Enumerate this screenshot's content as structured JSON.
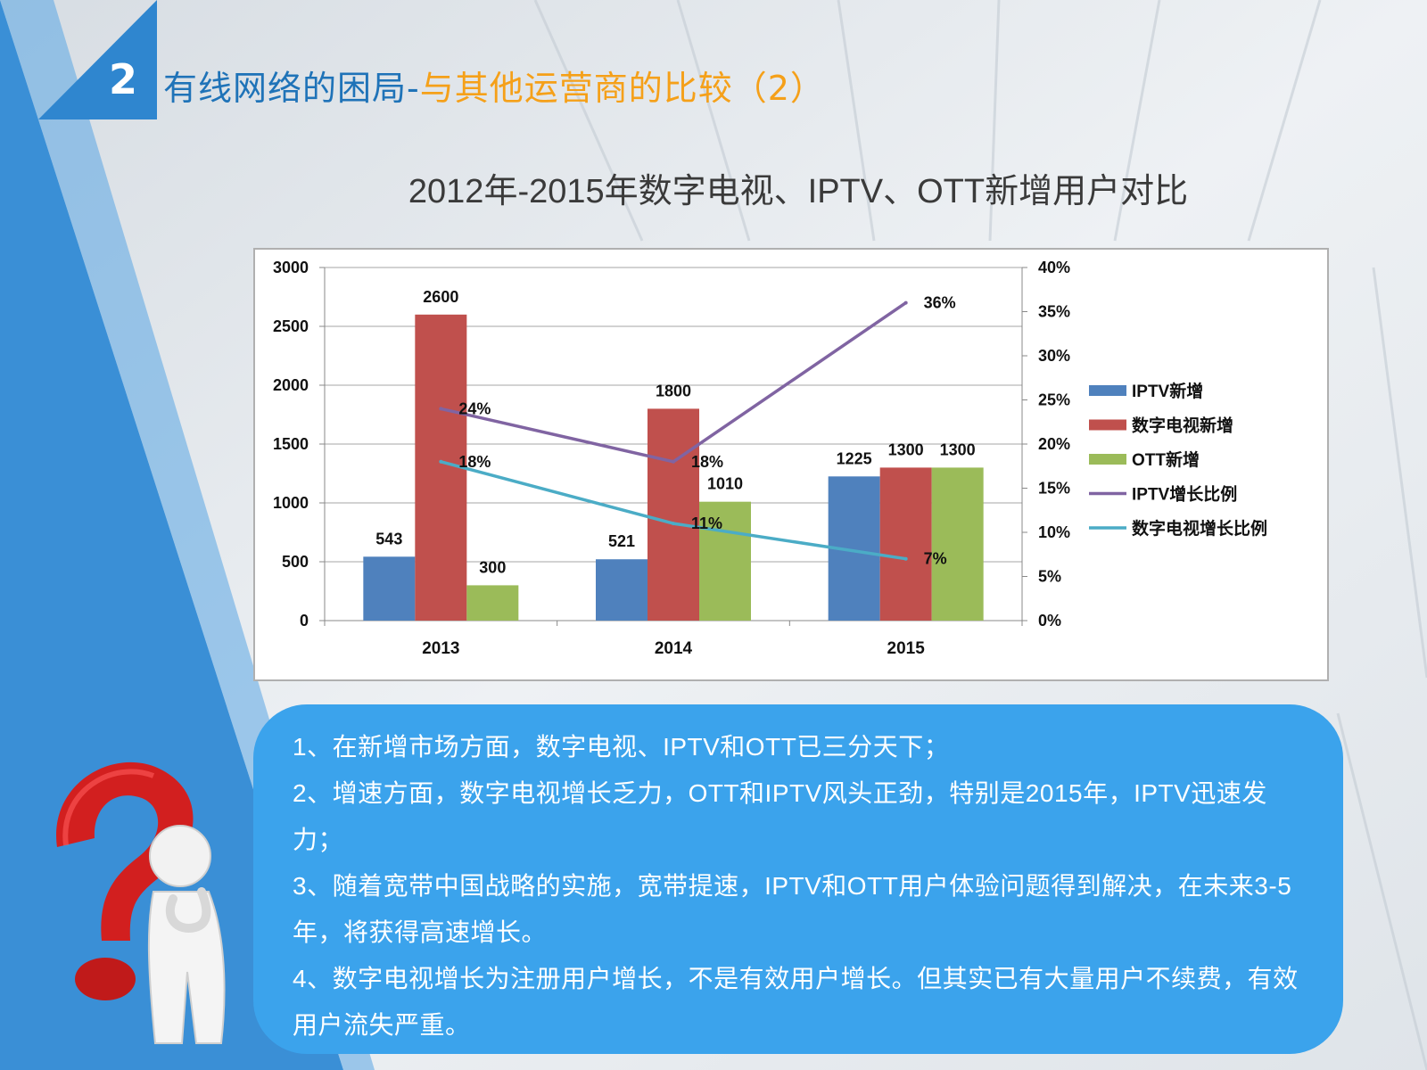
{
  "slide": {
    "number": "2",
    "title_part1": "有线网络的困局-",
    "title_part2": "与其他运营商的比较（2）",
    "chart_heading": "2012年-2015年数字电视、IPTV、OTT新增用户对比"
  },
  "colors": {
    "title_blue": "#1f73b8",
    "title_orange": "#f5a019",
    "iptv_bar": "#4f81bd",
    "dtv_bar": "#c0504d",
    "ott_bar": "#9bbb59",
    "iptv_growth_line": "#8064a2",
    "dtv_growth_line": "#4bacc6",
    "note_box": "#3ba3ec"
  },
  "chart_data": {
    "type": "bar",
    "title": "",
    "categories": [
      "2013",
      "2014",
      "2015"
    ],
    "series": [
      {
        "name": "IPTV新增",
        "kind": "bar",
        "values": [
          543,
          521,
          1225
        ],
        "labels": [
          "543",
          "521",
          "1225"
        ]
      },
      {
        "name": "数字电视新增",
        "kind": "bar",
        "values": [
          2600,
          1800,
          1300
        ],
        "labels": [
          "2600",
          "1800",
          "1300"
        ]
      },
      {
        "name": "OTT新增",
        "kind": "bar",
        "values": [
          300,
          1010,
          1300
        ],
        "labels": [
          "300",
          "1010",
          "1300"
        ]
      },
      {
        "name": "IPTV增长比例",
        "kind": "line",
        "axis": "right",
        "values": [
          0.24,
          0.18,
          0.36
        ],
        "labels": [
          "24%",
          "18%",
          "36%"
        ]
      },
      {
        "name": "数字电视增长比例",
        "kind": "line",
        "axis": "right",
        "values": [
          0.18,
          0.11,
          0.07
        ],
        "labels": [
          "18%",
          "11%",
          "7%"
        ]
      }
    ],
    "y_left": {
      "min": 0,
      "max": 3000,
      "ticks": [
        "0",
        "500",
        "1000",
        "1500",
        "2000",
        "2500",
        "3000"
      ]
    },
    "y_right": {
      "min": 0,
      "max": 0.4,
      "ticks": [
        "0%",
        "5%",
        "10%",
        "15%",
        "20%",
        "25%",
        "30%",
        "35%",
        "40%"
      ]
    },
    "grid": true,
    "legend_position": "right"
  },
  "notes": [
    "1、在新增市场方面，数字电视、IPTV和OTT已三分天下；",
    "2、增速方面，数字电视增长乏力，OTT和IPTV风头正劲，特别是2015年，IPTV迅速发力；",
    "3、随着宽带中国战略的实施，宽带提速，IPTV和OTT用户体验问题得到解决，在未来3-5年，将获得高速增长。",
    "4、数字电视增长为注册用户增长，不是有效用户增长。但其实已有大量用户不续费，有效用户流失严重。"
  ]
}
